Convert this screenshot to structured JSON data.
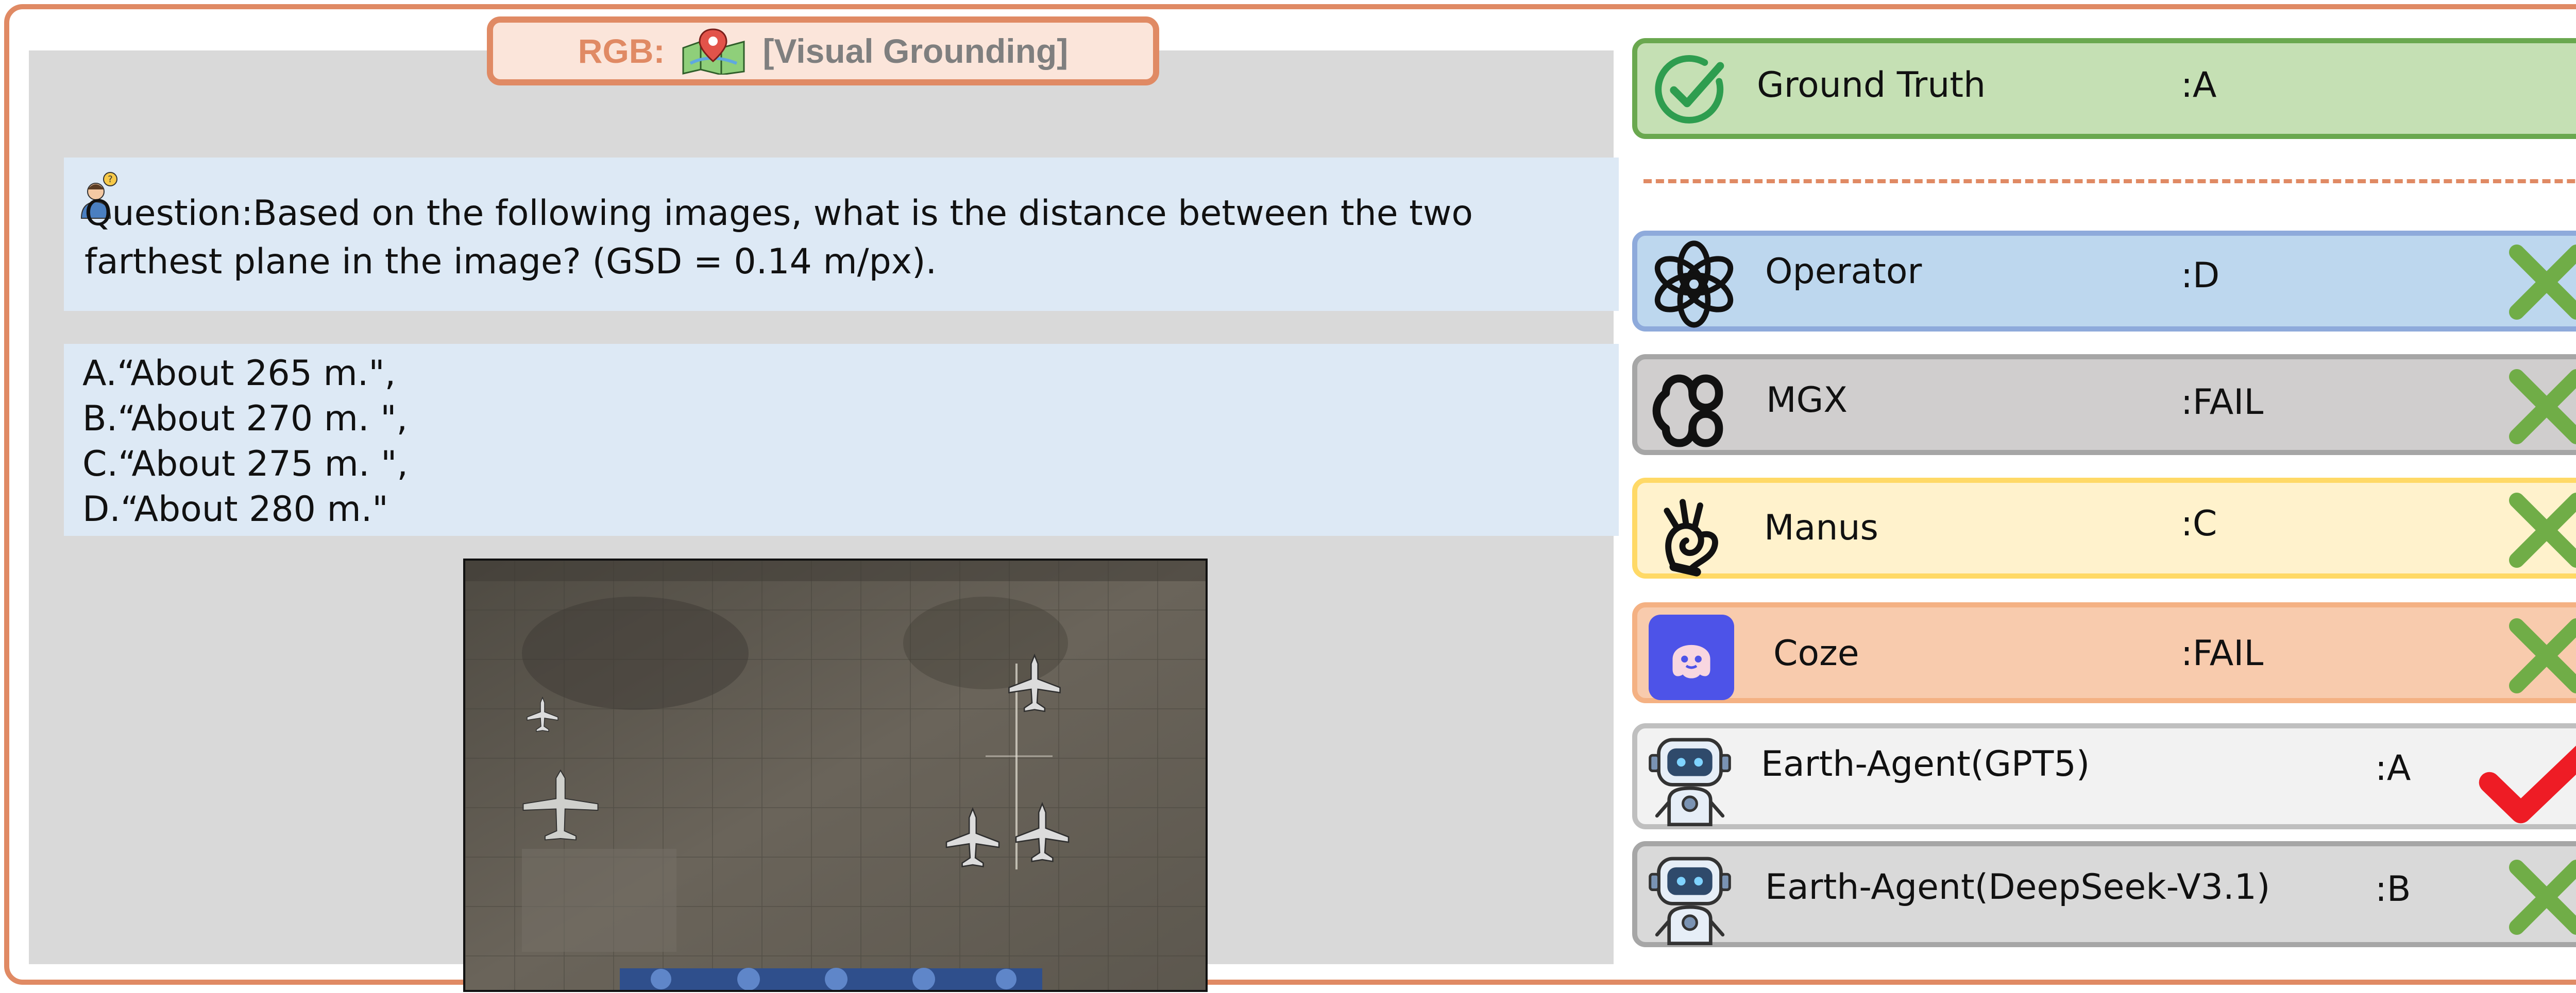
{
  "header": {
    "modality": "RGB:",
    "task": "[Visual Grounding]",
    "pin_color": "#e2534a"
  },
  "question": {
    "text": "Question:Based on the following images, what is the distance between the two farthest plane in the image? (GSD = 0.14 m/px)."
  },
  "options": [
    "A.“About 265 m.\",",
    "B.“About 270 m. \",",
    "C.“About 275 m. \",",
    "D.“About 280 m.\""
  ],
  "results": {
    "ground_truth": {
      "name": "Ground Truth",
      "answer": ":A",
      "icon": "check-circle-icon"
    },
    "agents": [
      {
        "name": "Operator",
        "answer": ":D",
        "correct": false,
        "icon": "openai-logo-icon"
      },
      {
        "name": "MGX",
        "answer": ":FAIL",
        "correct": false,
        "icon": "mgx-logo-icon"
      },
      {
        "name": "Manus",
        "answer": ":C",
        "correct": false,
        "icon": "manus-logo-icon"
      },
      {
        "name": "Coze",
        "answer": ":FAIL",
        "correct": false,
        "icon": "coze-logo-icon"
      },
      {
        "name": "Earth-Agent(GPT5)",
        "answer": ":A",
        "correct": true,
        "icon": "robot-icon"
      },
      {
        "name": "Earth-Agent(DeepSeek-V3.1)",
        "answer": ":B",
        "correct": false,
        "icon": "robot-icon"
      }
    ]
  },
  "colors": {
    "accent": "#e08a64",
    "wrong_mark": "#70ad47",
    "right_mark": "#ee1c25"
  }
}
